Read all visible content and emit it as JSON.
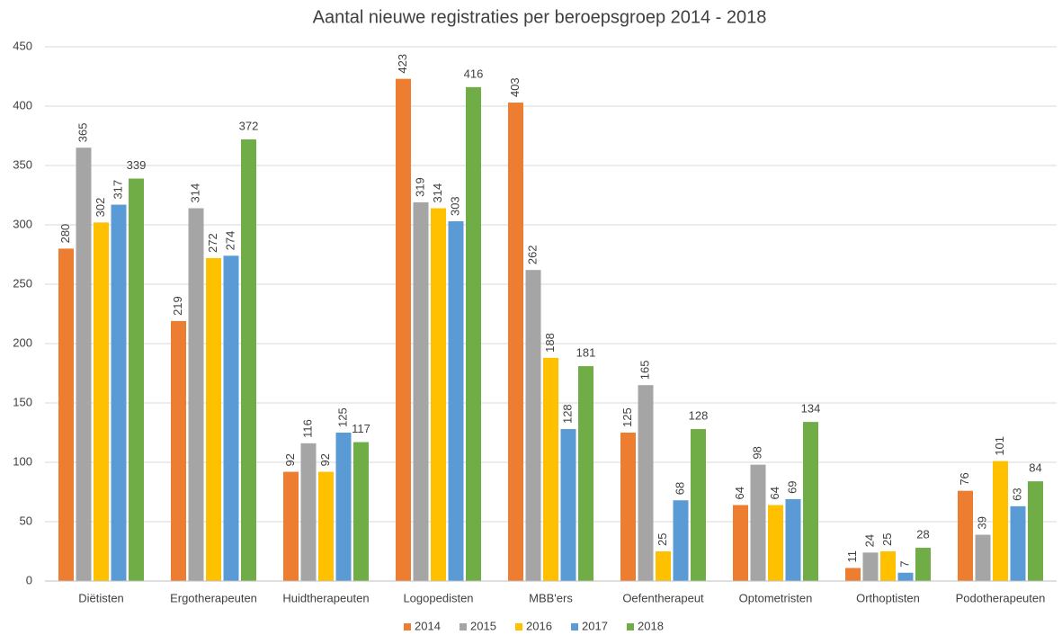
{
  "chart_data": {
    "type": "bar",
    "title": "Aantal nieuwe registraties per beroepsgroep 2014 - 2018",
    "categories": [
      "Diëtisten",
      "Ergotherapeuten",
      "Huidtherapeuten",
      "Logopedisten",
      "MBB'ers",
      "Oefentherapeut",
      "Optometristen",
      "Orthoptisten",
      "Podotherapeuten"
    ],
    "series": [
      {
        "name": "2014",
        "color": "#ed7d31",
        "values": [
          280,
          219,
          92,
          423,
          403,
          125,
          64,
          11,
          76
        ]
      },
      {
        "name": "2015",
        "color": "#a5a5a5",
        "values": [
          365,
          314,
          116,
          319,
          262,
          165,
          98,
          24,
          39
        ]
      },
      {
        "name": "2016",
        "color": "#ffc000",
        "values": [
          302,
          272,
          92,
          314,
          188,
          25,
          64,
          25,
          101
        ]
      },
      {
        "name": "2017",
        "color": "#5b9bd5",
        "values": [
          317,
          274,
          125,
          303,
          128,
          68,
          69,
          7,
          63
        ]
      },
      {
        "name": "2018",
        "color": "#70ad47",
        "values": [
          339,
          372,
          117,
          416,
          181,
          128,
          134,
          28,
          84
        ]
      }
    ],
    "ylim": [
      0,
      450
    ],
    "yticks": [
      0,
      50,
      100,
      150,
      200,
      250,
      300,
      350,
      400,
      450
    ],
    "grid": true,
    "legend": "bottom"
  }
}
